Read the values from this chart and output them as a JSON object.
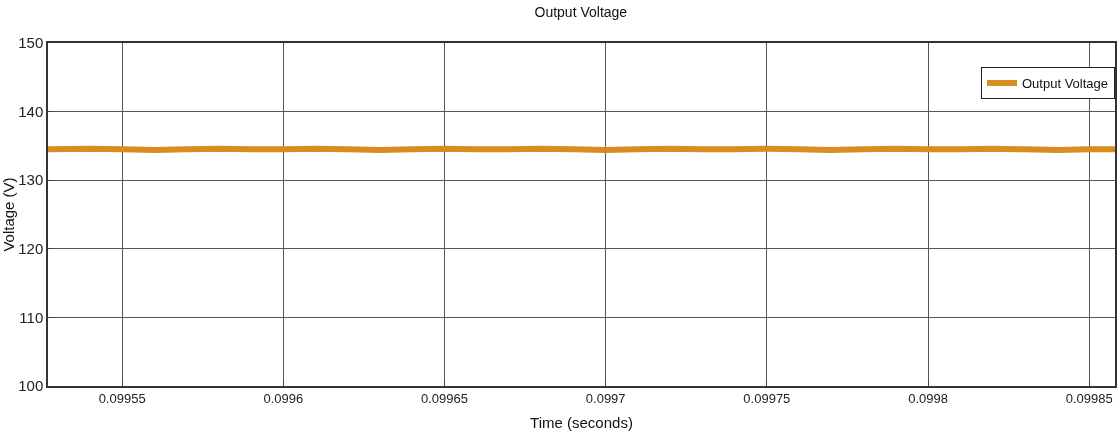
{
  "chart_data": {
    "type": "line",
    "title": "Output Voltage",
    "xlabel": "Time (seconds)",
    "ylabel": "Voltage (V)",
    "x": [
      0.099527,
      0.09954,
      0.09955,
      0.09956,
      0.09957,
      0.09958,
      0.09959,
      0.0996,
      0.09961,
      0.09962,
      0.09963,
      0.09964,
      0.09965,
      0.09966,
      0.09967,
      0.09968,
      0.09969,
      0.0997,
      0.09971,
      0.09972,
      0.09973,
      0.09974,
      0.09975,
      0.09976,
      0.09977,
      0.09978,
      0.09979,
      0.0998,
      0.09981,
      0.09982,
      0.09983,
      0.09984,
      0.09985,
      0.099858
    ],
    "series": [
      {
        "name": "Output Voltage",
        "color": "#d98c1f",
        "values": [
          134.5,
          134.6,
          134.5,
          134.4,
          134.5,
          134.6,
          134.5,
          134.5,
          134.6,
          134.5,
          134.4,
          134.5,
          134.6,
          134.5,
          134.5,
          134.6,
          134.5,
          134.4,
          134.5,
          134.6,
          134.5,
          134.5,
          134.6,
          134.5,
          134.4,
          134.5,
          134.6,
          134.5,
          134.5,
          134.6,
          134.5,
          134.4,
          134.5,
          134.5
        ]
      }
    ],
    "xlim": [
      0.099527,
      0.099858
    ],
    "xticks": [
      0.09955,
      0.0996,
      0.09965,
      0.0997,
      0.09975,
      0.0998,
      0.09985
    ],
    "ylim": [
      100,
      150
    ],
    "yticks": [
      100,
      110,
      120,
      130,
      140,
      150
    ],
    "grid": true,
    "legend": "top right",
    "marker": "none",
    "line_style": "solid"
  }
}
